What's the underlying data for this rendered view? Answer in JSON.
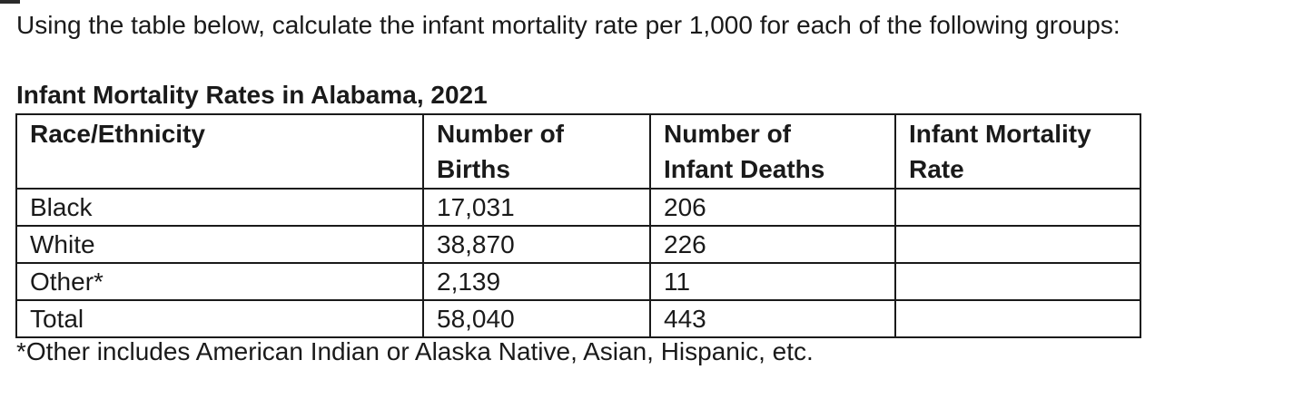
{
  "question": "Using the table below, calculate the infant mortality rate per 1,000 for each of the following groups:",
  "table": {
    "title": "Infant Mortality Rates in Alabama, 2021",
    "headers": {
      "race": "Race/Ethnicity",
      "births_line1": "Number of",
      "births_line2": "Births",
      "deaths_line1": "Number of",
      "deaths_line2": "Infant Deaths",
      "rate_line1": "Infant Mortality",
      "rate_line2": "Rate"
    },
    "rows": [
      {
        "group": "Black",
        "births": "17,031",
        "deaths": "206",
        "rate": ""
      },
      {
        "group": "White",
        "births": "38,870",
        "deaths": "226",
        "rate": ""
      },
      {
        "group": "Other*",
        "births": "2,139",
        "deaths": "11",
        "rate": ""
      },
      {
        "group": "Total",
        "births": "58,040",
        "deaths": "443",
        "rate": ""
      }
    ]
  },
  "footnote": "*Other includes American Indian or Alaska Native, Asian, Hispanic, etc."
}
